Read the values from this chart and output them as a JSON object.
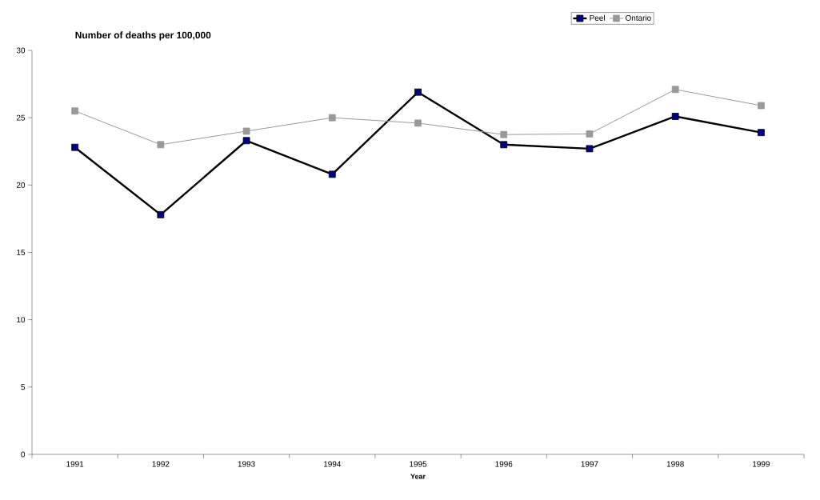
{
  "chart_data": {
    "type": "line",
    "title": "Number of deaths per 100,000",
    "xlabel": "Year",
    "categories": [
      "1991",
      "1992",
      "1993",
      "1994",
      "1995",
      "1996",
      "1997",
      "1998",
      "1999"
    ],
    "series": [
      {
        "name": "Peel",
        "color": "#000080",
        "values": [
          22.8,
          17.8,
          23.3,
          20.8,
          26.9,
          23.0,
          22.7,
          25.1,
          23.9
        ]
      },
      {
        "name": "Ontario",
        "color": "#999999",
        "values": [
          25.5,
          23.0,
          24.0,
          25.0,
          24.6,
          23.75,
          23.8,
          27.1,
          25.9
        ]
      }
    ],
    "ylim": [
      0,
      30
    ],
    "yticks": [
      0,
      5,
      10,
      15,
      20,
      25,
      30
    ],
    "grid": false,
    "legend": "top right",
    "marker": "square",
    "line_style": "solid"
  }
}
